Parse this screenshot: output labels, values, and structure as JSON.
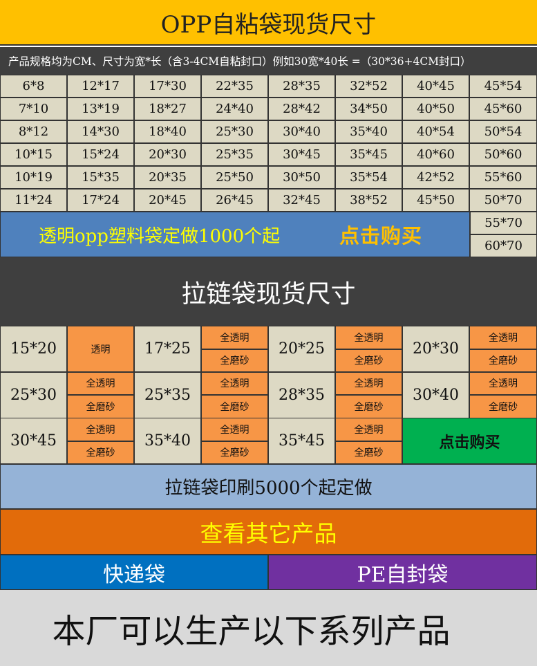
{
  "opp": {
    "title": "OPP自粘袋现货尺寸",
    "note": "产品规格均为CM、尺寸为宽*长（含3-4CM自粘封口）例如30宽*40长 =（30*36+4CM封口）",
    "rows": [
      [
        "6*8",
        "12*17",
        "17*30",
        "22*35",
        "28*35",
        "32*52",
        "40*45",
        "45*54"
      ],
      [
        "7*10",
        "13*19",
        "18*27",
        "24*40",
        "28*42",
        "34*50",
        "40*50",
        "45*60"
      ],
      [
        "8*12",
        "14*30",
        "18*40",
        "25*30",
        "30*40",
        "35*40",
        "40*54",
        "50*54"
      ],
      [
        "10*15",
        "15*24",
        "20*30",
        "25*35",
        "30*45",
        "35*45",
        "40*60",
        "50*60"
      ],
      [
        "10*19",
        "15*35",
        "20*35",
        "25*50",
        "30*50",
        "35*54",
        "42*52",
        "55*60"
      ],
      [
        "11*24",
        "17*24",
        "20*45",
        "26*45",
        "32*45",
        "38*52",
        "45*50",
        "50*70"
      ]
    ],
    "extra_sizes": [
      "55*70",
      "60*70"
    ],
    "custom_banner": "透明opp塑料袋定做1000个起",
    "buy_label": "点击购买"
  },
  "zip": {
    "title": "拉链袋现货尺寸",
    "rows": [
      [
        {
          "size": "15*20",
          "options": [
            "透明"
          ]
        },
        {
          "size": "17*25",
          "options": [
            "全透明",
            "全磨砂"
          ]
        },
        {
          "size": "20*25",
          "options": [
            "全透明",
            "全磨砂"
          ]
        },
        {
          "size": "20*30",
          "options": [
            "全透明",
            "全磨砂"
          ]
        }
      ],
      [
        {
          "size": "25*30",
          "options": [
            "全透明",
            "全磨砂"
          ]
        },
        {
          "size": "25*35",
          "options": [
            "全透明",
            "全磨砂"
          ]
        },
        {
          "size": "28*35",
          "options": [
            "全透明",
            "全磨砂"
          ]
        },
        {
          "size": "30*40",
          "options": [
            "全透明",
            "全磨砂"
          ]
        }
      ],
      [
        {
          "size": "30*45",
          "options": [
            "全透明",
            "全磨砂"
          ]
        },
        {
          "size": "35*40",
          "options": [
            "全透明",
            "全磨砂"
          ]
        },
        {
          "size": "35*45",
          "options": [
            "全透明",
            "全磨砂"
          ]
        }
      ]
    ],
    "buy_label": "点击购买",
    "print_note": "拉链袋印刷5000个起定做"
  },
  "links": {
    "other_products": "查看其它产品",
    "express_bag": "快递袋",
    "pe_bag": "PE自封袋"
  },
  "footer": "本厂可以生产以下系列产品",
  "colors": {
    "title_bg": "#ffc000",
    "dark_bg": "#3f3f3f",
    "cell_bg": "#ddd9c4",
    "orange": "#f79646",
    "blue_banner": "#4f81bd",
    "green_buy": "#00b050",
    "light_blue": "#95b3d7",
    "dark_orange": "#e26b0a",
    "express_blue": "#0070c0",
    "pe_purple": "#7030a0"
  }
}
